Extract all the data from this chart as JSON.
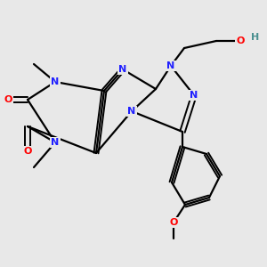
{
  "bg": "#e8e8e8",
  "atom_colors": {
    "N": "#2020ff",
    "O": "#ff0000",
    "C": "#000000",
    "H": "#4a9090"
  },
  "lw": 1.6,
  "fs": 8.0
}
